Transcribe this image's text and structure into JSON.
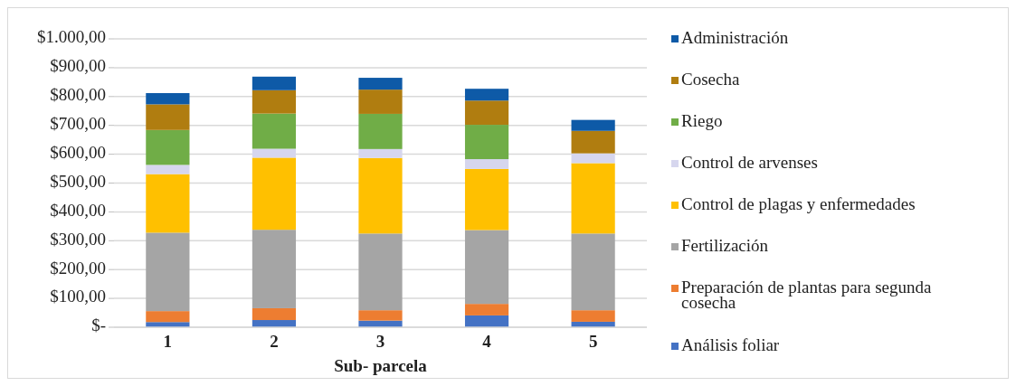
{
  "chart_data": {
    "type": "bar",
    "stacked": true,
    "xlabel": "Sub- parcela",
    "categories": [
      "1",
      "2",
      "3",
      "4",
      "5"
    ],
    "series": [
      {
        "name": "Análisis foliar",
        "color": "#4472c4",
        "values": [
          18,
          25,
          23,
          41,
          19
        ]
      },
      {
        "name": "Preparación de plantas para segunda cosecha",
        "color": "#ed7d31",
        "values": [
          38,
          41,
          36,
          40,
          40
        ]
      },
      {
        "name": "Fertilización",
        "color": "#a5a5a5",
        "values": [
          272,
          272,
          266,
          256,
          266
        ]
      },
      {
        "name": "Control de plagas y enfermedades",
        "color": "#ffc000",
        "values": [
          203,
          250,
          262,
          212,
          244
        ]
      },
      {
        "name": "Control de arvenses",
        "color": "#d6d6ee",
        "values": [
          32,
          31,
          31,
          34,
          34
        ]
      },
      {
        "name": "Riego",
        "color": "#70ad47",
        "values": [
          121,
          122,
          122,
          119,
          0
        ]
      },
      {
        "name": "Cosecha",
        "color": "#b07d10",
        "values": [
          89,
          81,
          84,
          84,
          78
        ]
      },
      {
        "name": "Administración",
        "color": "#0e5aa7",
        "values": [
          39,
          47,
          41,
          41,
          38
        ]
      }
    ],
    "ylim": [
      0,
      1000
    ],
    "yticks": [
      {
        "value": 0,
        "label": "$-"
      },
      {
        "value": 100,
        "label": "$100,00"
      },
      {
        "value": 200,
        "label": "$200,00"
      },
      {
        "value": 300,
        "label": "$300,00"
      },
      {
        "value": 400,
        "label": "$400,00"
      },
      {
        "value": 500,
        "label": "$500,00"
      },
      {
        "value": 600,
        "label": "$600,00"
      },
      {
        "value": 700,
        "label": "$700,00"
      },
      {
        "value": 800,
        "label": "$800,00"
      },
      {
        "value": 900,
        "label": "$900,00"
      },
      {
        "value": 1000,
        "label": "$1.000,00"
      }
    ],
    "grid": "y",
    "legend": "right"
  }
}
